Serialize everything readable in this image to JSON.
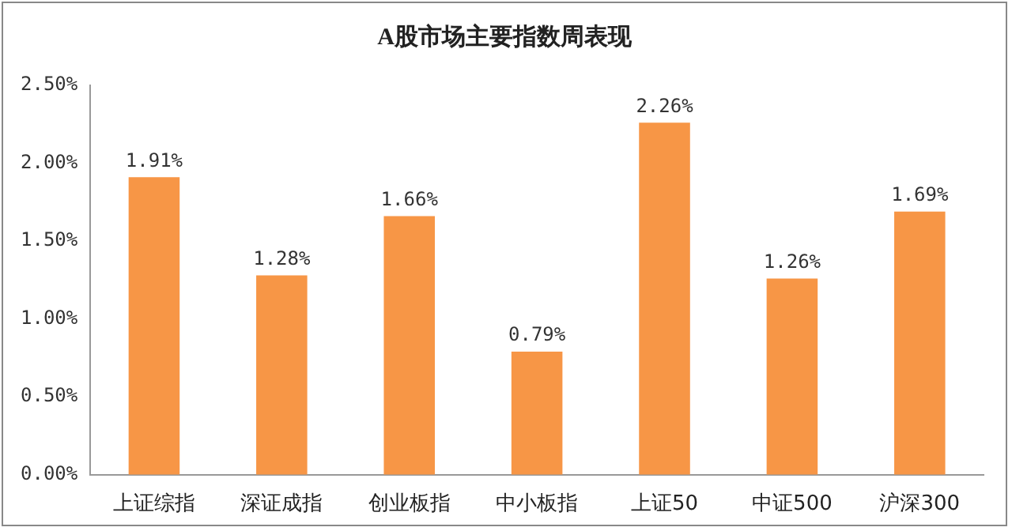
{
  "chart_data": {
    "type": "bar",
    "title": "A股市场主要指数周表现",
    "categories": [
      "上证综指",
      "深证成指",
      "创业板指",
      "中小板指",
      "上证50",
      "中证500",
      "沪深300"
    ],
    "values": [
      1.91,
      1.28,
      1.66,
      0.79,
      2.26,
      1.26,
      1.69
    ],
    "value_labels": [
      "1.91%",
      "1.28%",
      "1.66%",
      "0.79%",
      "2.26%",
      "1.26%",
      "1.69%"
    ],
    "color": "#f79646",
    "ylim": [
      0,
      2.5
    ],
    "yticks": [
      {
        "value": 0,
        "label": "0.00%"
      },
      {
        "value": 0.5,
        "label": "0.50%"
      },
      {
        "value": 1,
        "label": "1.00%"
      },
      {
        "value": 1.5,
        "label": "1.50%"
      },
      {
        "value": 2,
        "label": "2.00%"
      },
      {
        "value": 2.5,
        "label": "2.50%"
      }
    ],
    "grid": false,
    "legend": false
  }
}
